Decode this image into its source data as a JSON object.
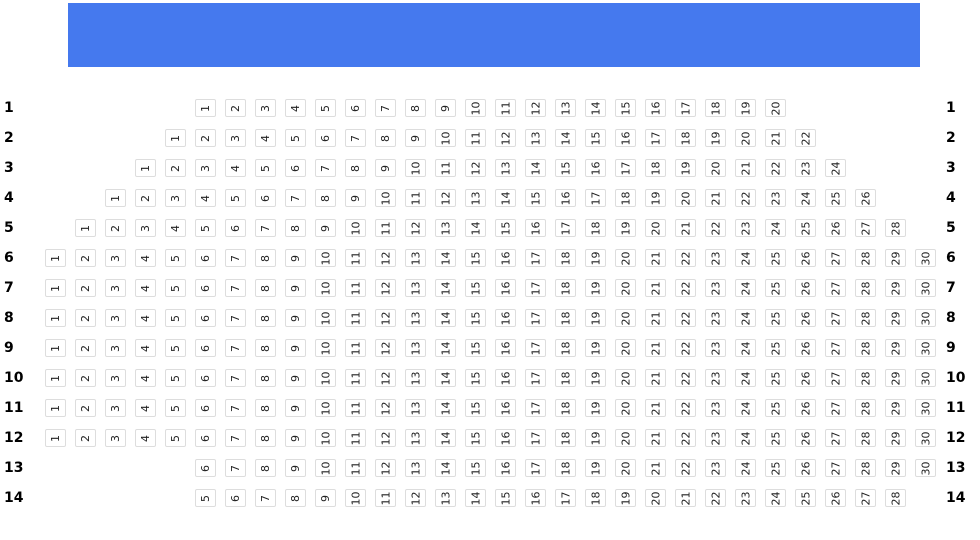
{
  "screen": {
    "label": "",
    "color": "#4579ee"
  },
  "rows": [
    {
      "label": "1",
      "seats": [
        1,
        2,
        3,
        4,
        5,
        6,
        7,
        8,
        9,
        10,
        11,
        12,
        13,
        14,
        15,
        16,
        17,
        18,
        19,
        20
      ]
    },
    {
      "label": "2",
      "seats": [
        1,
        2,
        3,
        4,
        5,
        6,
        7,
        8,
        9,
        10,
        11,
        12,
        13,
        14,
        15,
        16,
        17,
        18,
        19,
        20,
        21,
        22
      ]
    },
    {
      "label": "3",
      "seats": [
        1,
        2,
        3,
        4,
        5,
        6,
        7,
        8,
        9,
        10,
        11,
        12,
        13,
        14,
        15,
        16,
        17,
        18,
        19,
        20,
        21,
        22,
        23,
        24
      ]
    },
    {
      "label": "4",
      "seats": [
        1,
        2,
        3,
        4,
        5,
        6,
        7,
        8,
        9,
        10,
        11,
        12,
        13,
        14,
        15,
        16,
        17,
        18,
        19,
        20,
        21,
        22,
        23,
        24,
        25,
        26
      ]
    },
    {
      "label": "5",
      "seats": [
        1,
        2,
        3,
        4,
        5,
        6,
        7,
        8,
        9,
        10,
        11,
        12,
        13,
        14,
        15,
        16,
        17,
        18,
        19,
        20,
        21,
        22,
        23,
        24,
        25,
        26,
        27,
        28
      ]
    },
    {
      "label": "6",
      "seats": [
        1,
        2,
        3,
        4,
        5,
        6,
        7,
        8,
        9,
        10,
        11,
        12,
        13,
        14,
        15,
        16,
        17,
        18,
        19,
        20,
        21,
        22,
        23,
        24,
        25,
        26,
        27,
        28,
        29,
        30
      ]
    },
    {
      "label": "7",
      "seats": [
        1,
        2,
        3,
        4,
        5,
        6,
        7,
        8,
        9,
        10,
        11,
        12,
        13,
        14,
        15,
        16,
        17,
        18,
        19,
        20,
        21,
        22,
        23,
        24,
        25,
        26,
        27,
        28,
        29,
        30
      ]
    },
    {
      "label": "8",
      "seats": [
        1,
        2,
        3,
        4,
        5,
        6,
        7,
        8,
        9,
        10,
        11,
        12,
        13,
        14,
        15,
        16,
        17,
        18,
        19,
        20,
        21,
        22,
        23,
        24,
        25,
        26,
        27,
        28,
        29,
        30
      ]
    },
    {
      "label": "9",
      "seats": [
        1,
        2,
        3,
        4,
        5,
        6,
        7,
        8,
        9,
        10,
        11,
        12,
        13,
        14,
        15,
        16,
        17,
        18,
        19,
        20,
        21,
        22,
        23,
        24,
        25,
        26,
        27,
        28,
        29,
        30
      ]
    },
    {
      "label": "10",
      "seats": [
        1,
        2,
        3,
        4,
        5,
        6,
        7,
        8,
        9,
        10,
        11,
        12,
        13,
        14,
        15,
        16,
        17,
        18,
        19,
        20,
        21,
        22,
        23,
        24,
        25,
        26,
        27,
        28,
        29,
        30
      ]
    },
    {
      "label": "11",
      "seats": [
        1,
        2,
        3,
        4,
        5,
        6,
        7,
        8,
        9,
        10,
        11,
        12,
        13,
        14,
        15,
        16,
        17,
        18,
        19,
        20,
        21,
        22,
        23,
        24,
        25,
        26,
        27,
        28,
        29,
        30
      ]
    },
    {
      "label": "12",
      "seats": [
        1,
        2,
        3,
        4,
        5,
        6,
        7,
        8,
        9,
        10,
        11,
        12,
        13,
        14,
        15,
        16,
        17,
        18,
        19,
        20,
        21,
        22,
        23,
        24,
        25,
        26,
        27,
        28,
        29,
        30
      ]
    },
    {
      "label": "13",
      "seats": [
        6,
        7,
        8,
        9,
        10,
        11,
        12,
        13,
        14,
        15,
        16,
        17,
        18,
        19,
        20,
        21,
        22,
        23,
        24,
        25,
        26,
        27,
        28,
        29,
        30
      ]
    },
    {
      "label": "14",
      "seats": [
        5,
        6,
        7,
        8,
        9,
        10,
        11,
        12,
        13,
        14,
        15,
        16,
        17,
        18,
        19,
        20,
        21,
        22,
        23,
        24,
        25,
        26,
        27,
        28
      ]
    }
  ]
}
